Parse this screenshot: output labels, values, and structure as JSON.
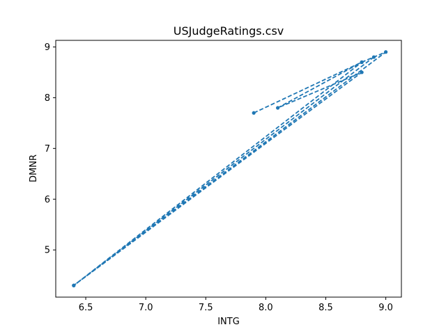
{
  "chart_data": {
    "type": "line",
    "title": "USJudgeRatings.csv",
    "xlabel": "INTG",
    "ylabel": "DMNR",
    "xlim": [
      6.25,
      9.13
    ],
    "ylim": [
      4.07,
      9.13
    ],
    "xticks": [
      6.5,
      7.0,
      7.5,
      8.0,
      8.5,
      9.0
    ],
    "xtick_labels": [
      "6.5",
      "7.0",
      "7.5",
      "8.0",
      "8.5",
      "9.0"
    ],
    "yticks": [
      5,
      6,
      7,
      8,
      9
    ],
    "ytick_labels": [
      "5",
      "6",
      "7",
      "8",
      "9"
    ],
    "grid": false,
    "line_style": "dashed",
    "marker": "circle",
    "color": "#1f77b4",
    "series": [
      {
        "x": [
          7.9,
          8.8,
          9.0,
          6.4,
          8.8,
          8.1,
          8.8,
          6.4,
          8.9
        ],
        "y": [
          7.7,
          8.7,
          8.9,
          4.3,
          8.5,
          7.8,
          8.7,
          4.3,
          8.8
        ]
      }
    ]
  }
}
